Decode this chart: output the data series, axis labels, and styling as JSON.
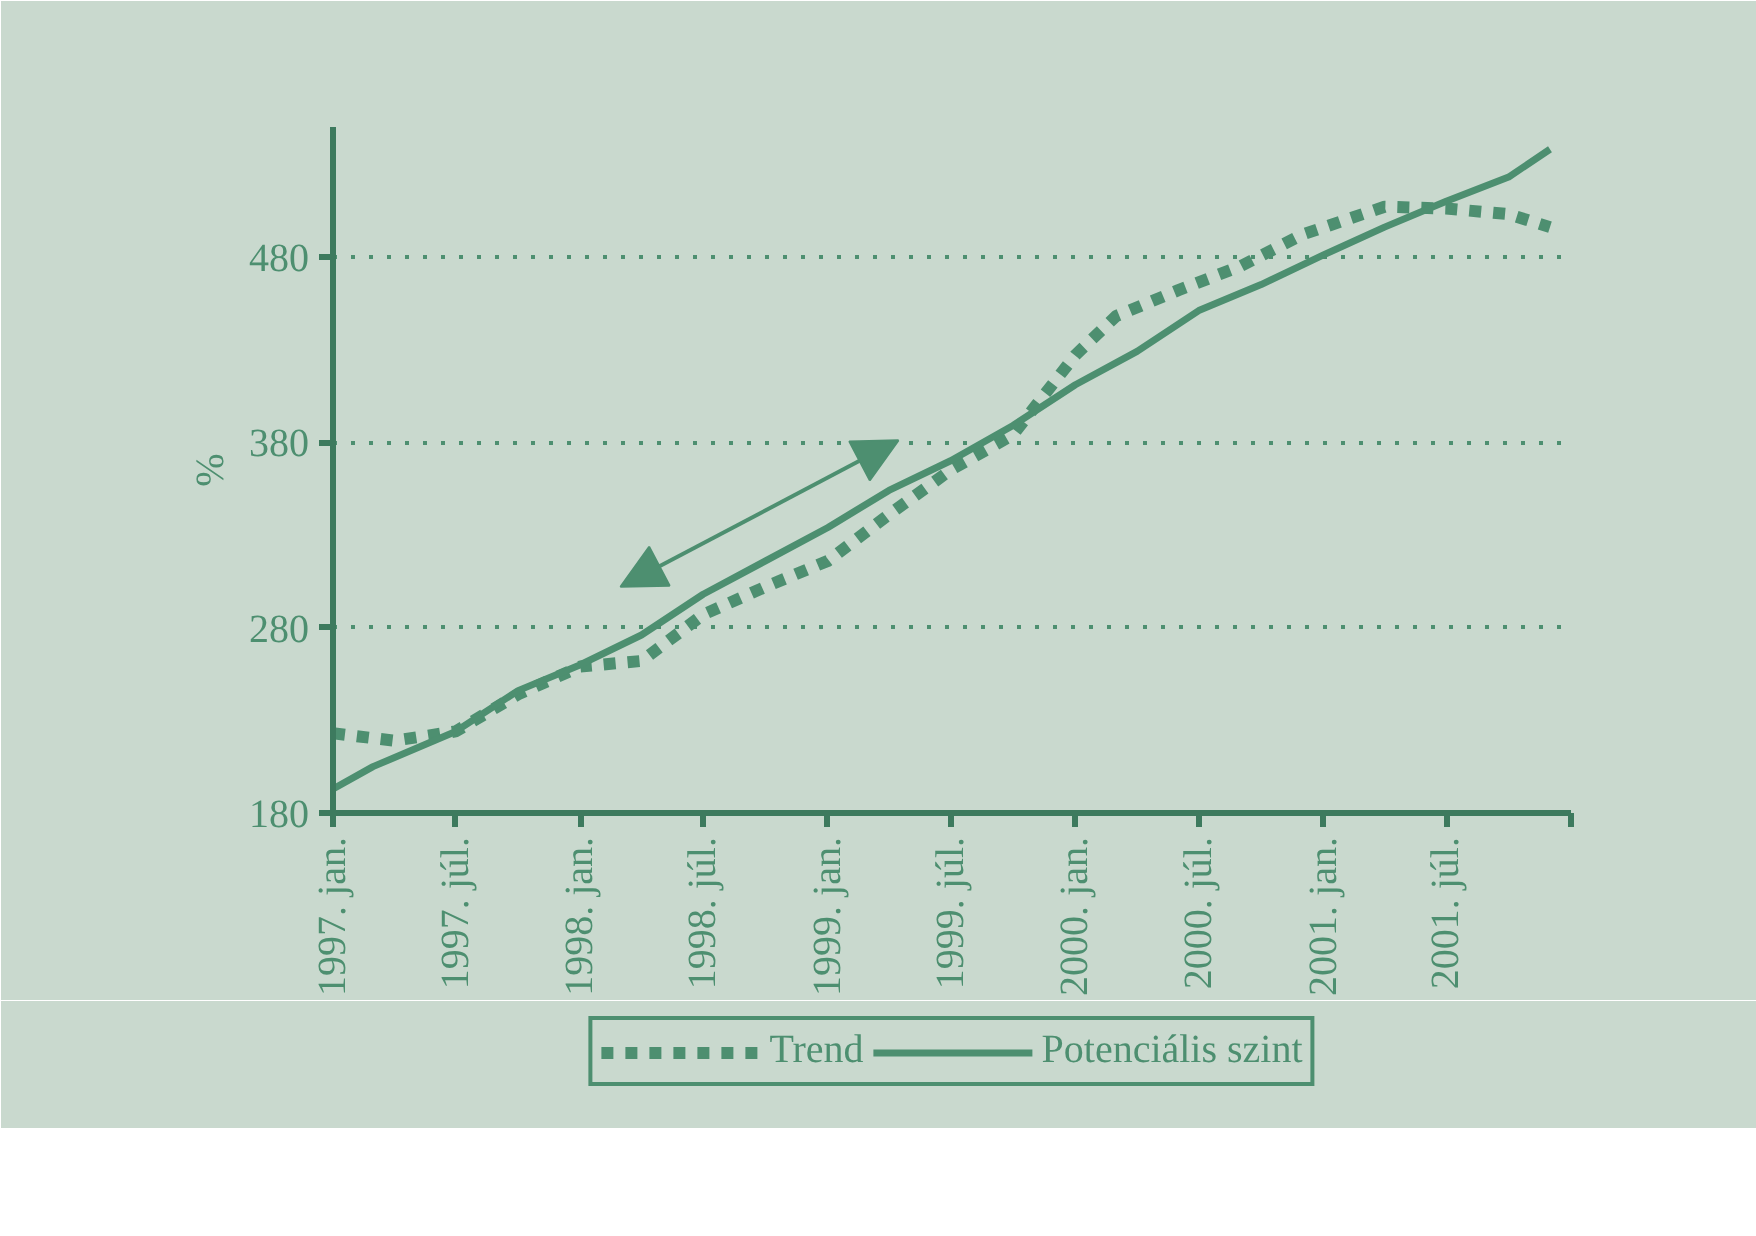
{
  "chart_data": {
    "type": "line",
    "ylabel": "%",
    "series": [
      {
        "name": "Trend",
        "color": "#4d8f70",
        "line_style": "dashed",
        "x": [
          "1997-01",
          "1997-04",
          "1997-07",
          "1997-10",
          "1998-01",
          "1998-04",
          "1998-07",
          "1998-10",
          "1999-01",
          "1999-04",
          "1999-07",
          "1999-10",
          "2000-01",
          "2000-03",
          "2000-06",
          "2000-09",
          "2000-12",
          "2001-04",
          "2001-07",
          "2001-10",
          "2001-12"
        ],
        "values": [
          223,
          219,
          224,
          244,
          259,
          262,
          287,
          302,
          316,
          341,
          365,
          384,
          427,
          448,
          462,
          475,
          492,
          507,
          506,
          503,
          496
        ]
      },
      {
        "name": "Potenciális szint",
        "color": "#4d8f70",
        "line_style": "solid",
        "x": [
          "1997-01",
          "1997-03",
          "1997-07",
          "1997-10",
          "1998-01",
          "1998-04",
          "1998-07",
          "1998-10",
          "1999-01",
          "1999-04",
          "1999-07",
          "1999-10",
          "2000-01",
          "2000-04",
          "2000-07",
          "2000-10",
          "2001-01",
          "2001-04",
          "2001-07",
          "2001-10",
          "2001-12"
        ],
        "values": [
          193,
          205,
          224,
          246,
          260,
          276,
          298,
          316,
          334,
          354,
          370,
          389,
          411,
          429,
          451,
          465,
          481,
          496,
          510,
          523,
          538
        ]
      }
    ],
    "xlim": [
      "1997-01",
      "2002-01"
    ],
    "xticks": [
      {
        "value": "1997-01",
        "label": "1997. jan."
      },
      {
        "value": "1997-07",
        "label": "1997. júl."
      },
      {
        "value": "1998-01",
        "label": "1998. jan."
      },
      {
        "value": "1998-07",
        "label": "1998. júl."
      },
      {
        "value": "1999-01",
        "label": "1999. jan."
      },
      {
        "value": "1999-07",
        "label": "1999. júl."
      },
      {
        "value": "2000-01",
        "label": "2000. jan."
      },
      {
        "value": "2000-07",
        "label": "2000. júl."
      },
      {
        "value": "2001-01",
        "label": "2001. jan."
      },
      {
        "value": "2001-07",
        "label": "2001. júl."
      },
      {
        "value": "2002-01",
        "label": null
      }
    ],
    "ylim": [
      180,
      550
    ],
    "yticks": [
      180,
      280,
      380,
      480
    ],
    "grid": "y",
    "legend": "bottom",
    "marker": "none"
  }
}
